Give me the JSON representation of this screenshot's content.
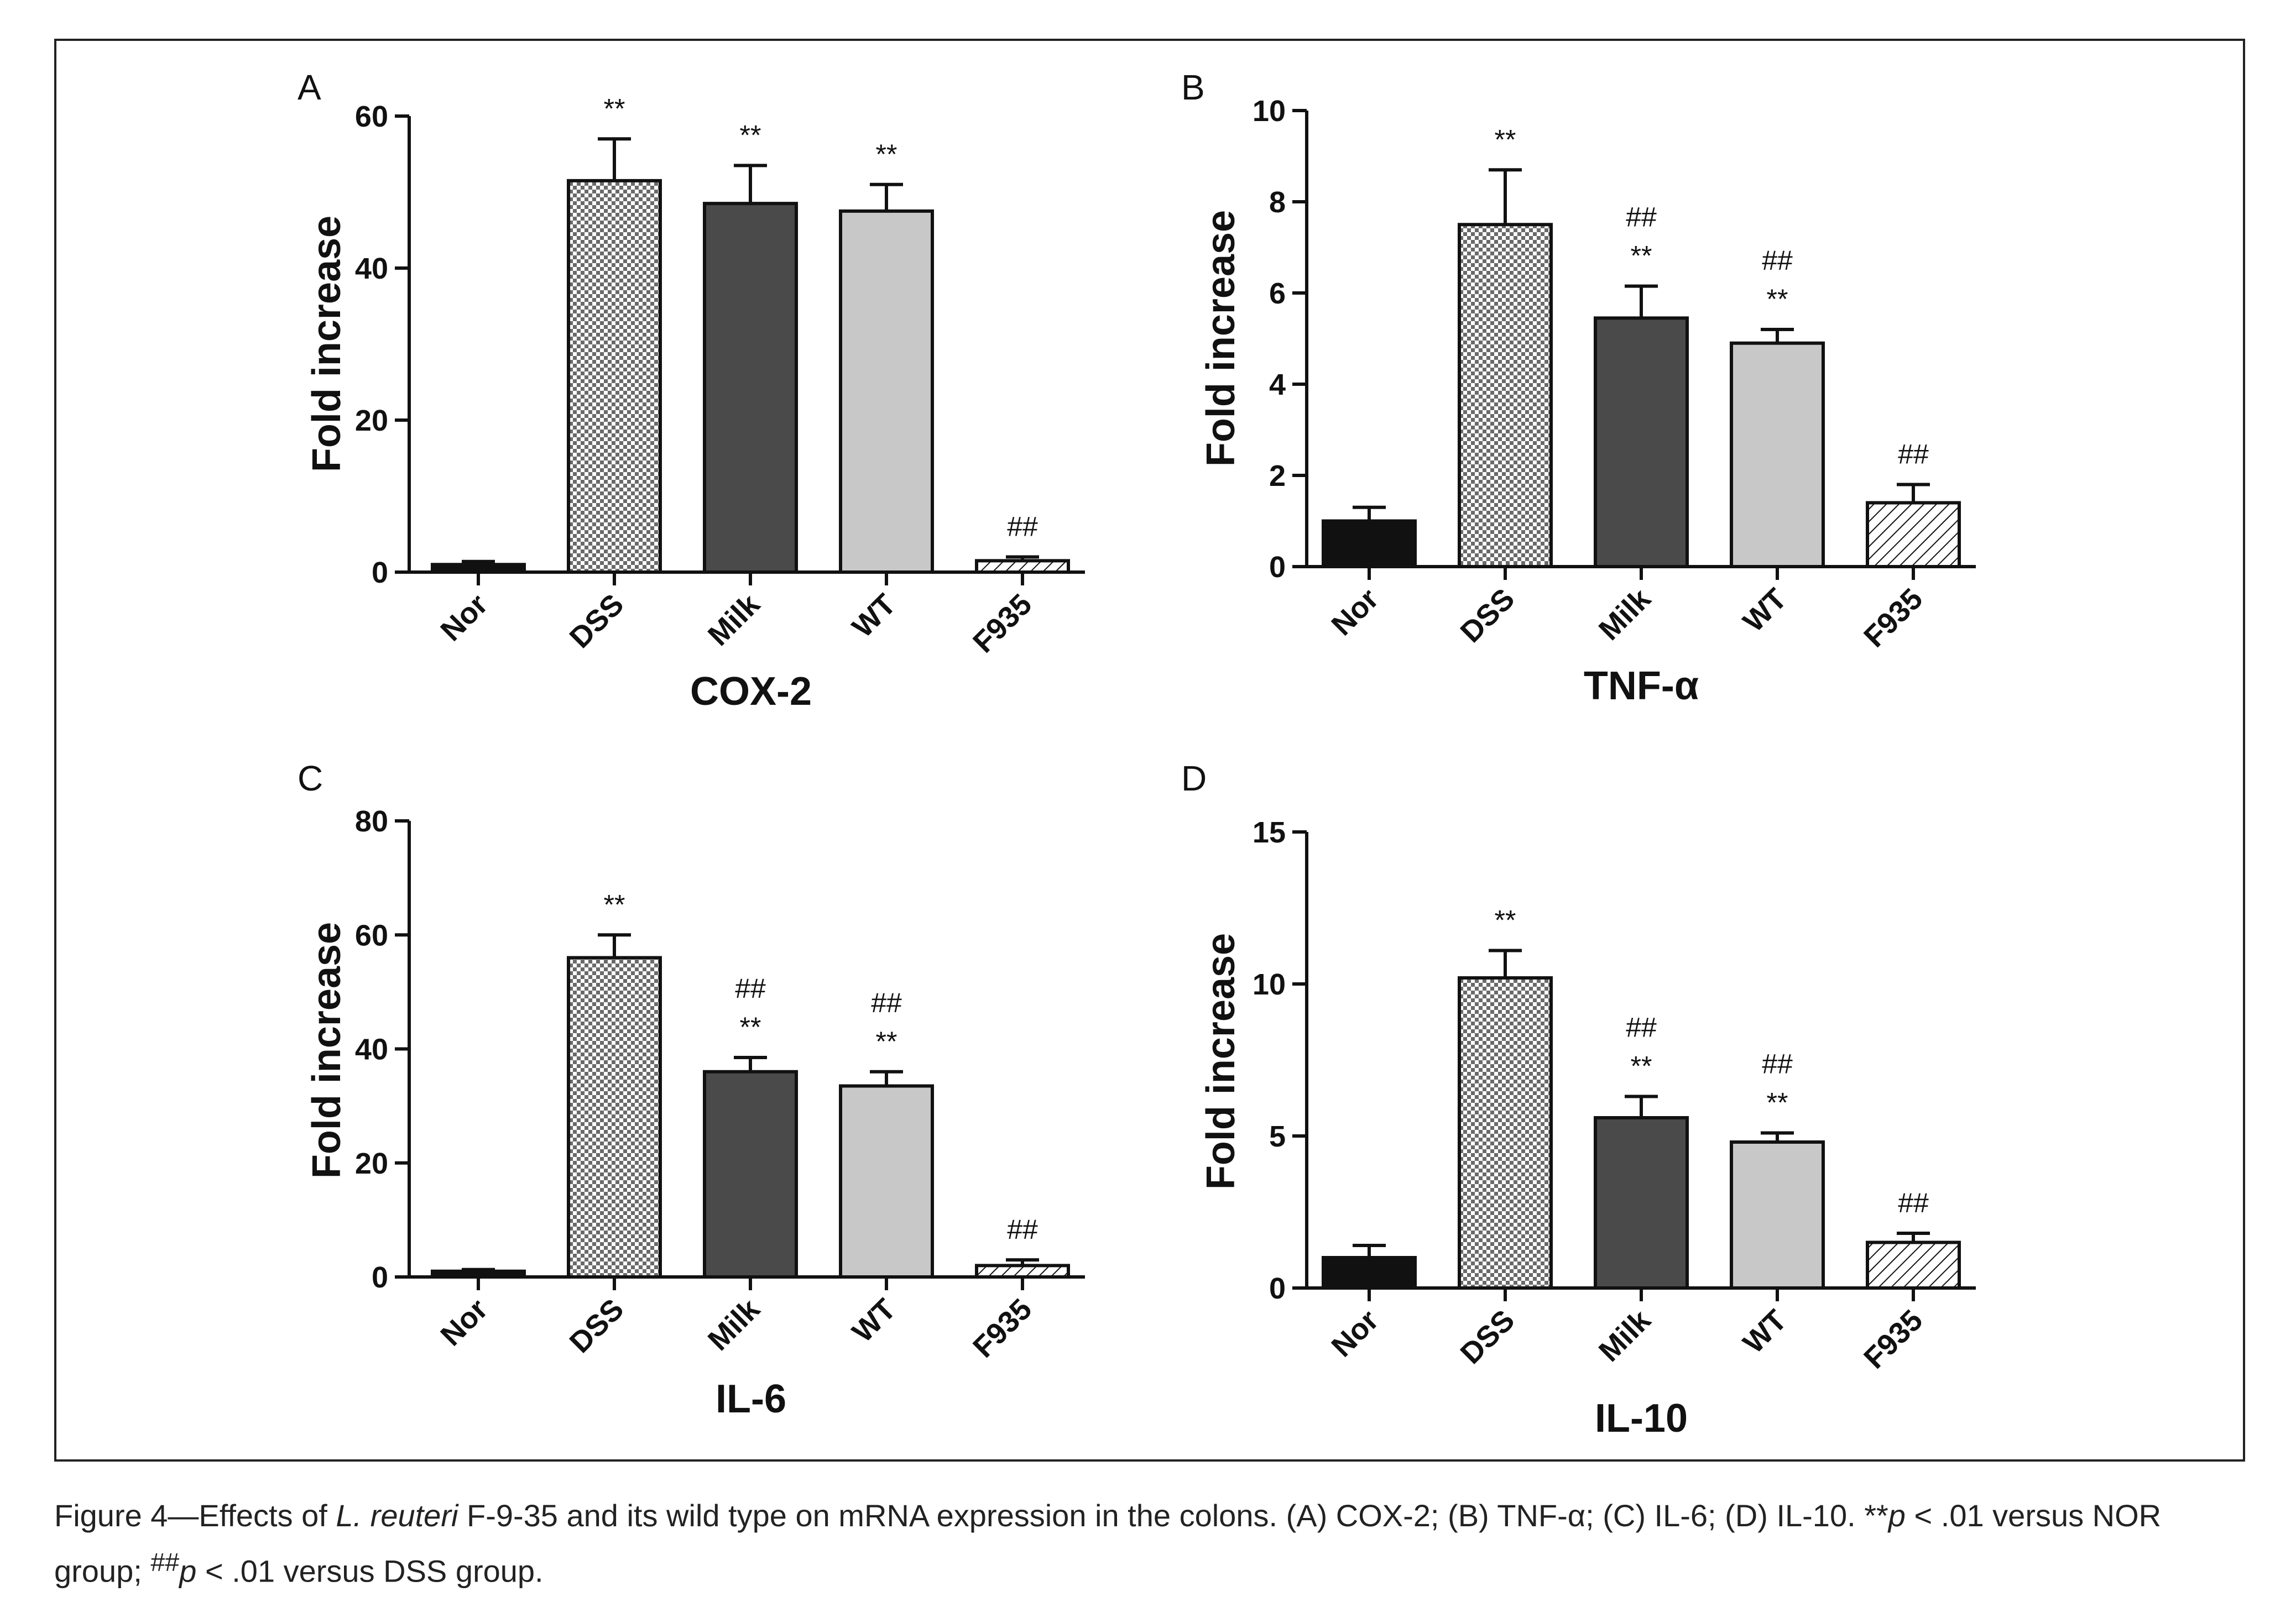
{
  "chart_data": [
    {
      "panel": "A",
      "type": "bar",
      "title": "COX-2",
      "ylabel": "Fold increase",
      "ylim": [
        0,
        60
      ],
      "yticks": [
        0,
        20,
        40,
        60
      ],
      "categories": [
        "Nor",
        "DSS",
        "Milk",
        "WT",
        "F935"
      ],
      "values": [
        1.0,
        51.5,
        48.5,
        47.5,
        1.5
      ],
      "errors": [
        0.4,
        5.5,
        5.0,
        3.5,
        0.5
      ],
      "significance": [
        [],
        [
          "**"
        ],
        [
          "**"
        ],
        [
          "**"
        ],
        [
          "##"
        ]
      ],
      "bar_styles": [
        "black",
        "checker",
        "dark",
        "light",
        "hatch"
      ]
    },
    {
      "panel": "B",
      "type": "bar",
      "title": "TNF-α",
      "ylabel": "Fold increase",
      "ylim": [
        0,
        10
      ],
      "yticks": [
        0,
        2,
        4,
        6,
        8,
        10
      ],
      "categories": [
        "Nor",
        "DSS",
        "Milk",
        "WT",
        "F935"
      ],
      "values": [
        1.0,
        7.5,
        5.45,
        4.9,
        1.4
      ],
      "errors": [
        0.3,
        1.2,
        0.7,
        0.3,
        0.4
      ],
      "significance": [
        [],
        [
          "**"
        ],
        [
          "##",
          "**"
        ],
        [
          "##",
          "**"
        ],
        [
          "##"
        ]
      ],
      "bar_styles": [
        "black",
        "checker",
        "dark",
        "light",
        "hatch"
      ]
    },
    {
      "panel": "C",
      "type": "bar",
      "title": "IL-6",
      "ylabel": "Fold increase",
      "ylim": [
        0,
        80
      ],
      "yticks": [
        0,
        20,
        40,
        60,
        80
      ],
      "categories": [
        "Nor",
        "DSS",
        "Milk",
        "WT",
        "F935"
      ],
      "values": [
        1.0,
        56.0,
        36.0,
        33.5,
        2.0
      ],
      "errors": [
        0.3,
        4.0,
        2.5,
        2.5,
        1.0
      ],
      "significance": [
        [],
        [
          "**"
        ],
        [
          "##",
          "**"
        ],
        [
          "##",
          "**"
        ],
        [
          "##"
        ]
      ],
      "bar_styles": [
        "black",
        "checker",
        "dark",
        "light",
        "hatch"
      ]
    },
    {
      "panel": "D",
      "type": "bar",
      "title": "IL-10",
      "ylabel": "Fold increase",
      "ylim": [
        0,
        15
      ],
      "yticks": [
        0,
        5,
        10,
        15
      ],
      "categories": [
        "Nor",
        "DSS",
        "Milk",
        "WT",
        "F935"
      ],
      "values": [
        1.0,
        10.2,
        5.6,
        4.8,
        1.5
      ],
      "errors": [
        0.4,
        0.9,
        0.7,
        0.3,
        0.3
      ],
      "significance": [
        [],
        [
          "**"
        ],
        [
          "##",
          "**"
        ],
        [
          "##",
          "**"
        ],
        [
          "##"
        ]
      ],
      "bar_styles": [
        "black",
        "checker",
        "dark",
        "light",
        "hatch"
      ]
    }
  ],
  "colors": {
    "black_bar": "#111111",
    "dark_bar": "#4a4a4a",
    "light_bar": "#c8c8c8",
    "axis": "#111111"
  },
  "caption": {
    "line1_pre": "Figure 4—Effects of ",
    "species": "L. reuteri",
    "line1_post": " F-9-35 and its wild type on mRNA expression in the colons. (A) COX-2; (B) TNF-α; (C) IL-6; (D) IL-10. **",
    "p1": "p",
    "line1_end": " < .01 versus NOR",
    "line2_pre": "group; ",
    "hash": "##",
    "p2": "p",
    "line2_end": " < .01 versus DSS group."
  }
}
